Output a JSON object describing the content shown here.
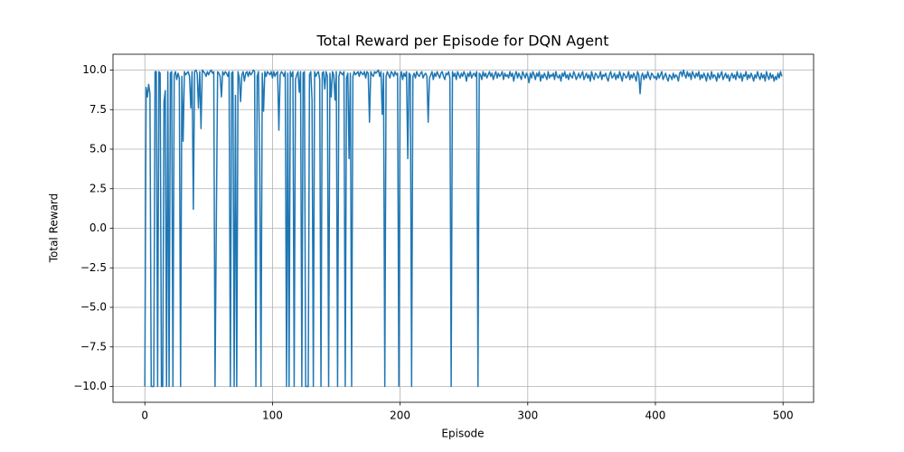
{
  "chart_data": {
    "type": "line",
    "title": "Total Reward per Episode for DQN Agent",
    "x_label": "Episode",
    "y_label": "Total Reward",
    "grid": true,
    "xlim": [
      -24.95,
      523.95
    ],
    "ylim": [
      -11,
      11
    ],
    "xticks": [
      0,
      100,
      200,
      300,
      400,
      500
    ],
    "yticks": [
      {
        "value": -10,
        "label": "−10.0"
      },
      {
        "value": -7.5,
        "label": "−7.5"
      },
      {
        "value": -5,
        "label": "−5.0"
      },
      {
        "value": -2.5,
        "label": "−2.5"
      },
      {
        "value": 0,
        "label": "0.0"
      },
      {
        "value": 2.5,
        "label": "2.5"
      },
      {
        "value": 5,
        "label": "5.0"
      },
      {
        "value": 7.5,
        "label": "7.5"
      },
      {
        "value": 10,
        "label": "10.0"
      }
    ],
    "x": [
      0,
      1,
      2,
      3,
      4,
      5,
      6,
      7,
      8,
      9,
      10,
      11,
      12,
      13,
      14,
      15,
      16,
      17,
      18,
      19,
      20,
      21,
      22,
      23,
      24,
      25,
      26,
      27,
      28,
      29,
      30,
      31,
      32,
      33,
      34,
      35,
      36,
      37,
      38,
      39,
      40,
      41,
      42,
      43,
      44,
      45,
      46,
      47,
      48,
      49,
      50,
      51,
      52,
      53,
      54,
      55,
      56,
      57,
      58,
      59,
      60,
      61,
      62,
      63,
      64,
      65,
      66,
      67,
      68,
      69,
      70,
      71,
      72,
      73,
      74,
      75,
      76,
      77,
      78,
      79,
      80,
      81,
      82,
      83,
      84,
      85,
      86,
      87,
      88,
      89,
      90,
      91,
      92,
      93,
      94,
      95,
      96,
      97,
      98,
      99,
      100,
      101,
      102,
      103,
      104,
      105,
      106,
      107,
      108,
      109,
      110,
      111,
      112,
      113,
      114,
      115,
      116,
      117,
      118,
      119,
      120,
      121,
      122,
      123,
      124,
      125,
      126,
      127,
      128,
      129,
      130,
      131,
      132,
      133,
      134,
      135,
      136,
      137,
      138,
      139,
      140,
      141,
      142,
      143,
      144,
      145,
      146,
      147,
      148,
      149,
      150,
      151,
      152,
      153,
      154,
      155,
      156,
      157,
      158,
      159,
      160,
      161,
      162,
      163,
      164,
      165,
      166,
      167,
      168,
      169,
      170,
      171,
      172,
      173,
      174,
      175,
      176,
      177,
      178,
      179,
      180,
      181,
      182,
      183,
      184,
      185,
      186,
      187,
      188,
      189,
      190,
      191,
      192,
      193,
      194,
      195,
      196,
      197,
      198,
      199,
      200,
      201,
      202,
      203,
      204,
      205,
      206,
      207,
      208,
      209,
      210,
      211,
      212,
      213,
      214,
      215,
      216,
      217,
      218,
      219,
      220,
      221,
      222,
      223,
      224,
      225,
      226,
      227,
      228,
      229,
      230,
      231,
      232,
      233,
      234,
      235,
      236,
      237,
      238,
      239,
      240,
      241,
      242,
      243,
      244,
      245,
      246,
      247,
      248,
      249,
      250,
      251,
      252,
      253,
      254,
      255,
      256,
      257,
      258,
      259,
      260,
      261,
      262,
      263,
      264,
      265,
      266,
      267,
      268,
      269,
      270,
      271,
      272,
      273,
      274,
      275,
      276,
      277,
      278,
      279,
      280,
      281,
      282,
      283,
      284,
      285,
      286,
      287,
      288,
      289,
      290,
      291,
      292,
      293,
      294,
      295,
      296,
      297,
      298,
      299,
      300,
      301,
      302,
      303,
      304,
      305,
      306,
      307,
      308,
      309,
      310,
      311,
      312,
      313,
      314,
      315,
      316,
      317,
      318,
      319,
      320,
      321,
      322,
      323,
      324,
      325,
      326,
      327,
      328,
      329,
      330,
      331,
      332,
      333,
      334,
      335,
      336,
      337,
      338,
      339,
      340,
      341,
      342,
      343,
      344,
      345,
      346,
      347,
      348,
      349,
      350,
      351,
      352,
      353,
      354,
      355,
      356,
      357,
      358,
      359,
      360,
      361,
      362,
      363,
      364,
      365,
      366,
      367,
      368,
      369,
      370,
      371,
      372,
      373,
      374,
      375,
      376,
      377,
      378,
      379,
      380,
      381,
      382,
      383,
      384,
      385,
      386,
      387,
      388,
      389,
      390,
      391,
      392,
      393,
      394,
      395,
      396,
      397,
      398,
      399,
      400,
      401,
      402,
      403,
      404,
      405,
      406,
      407,
      408,
      409,
      410,
      411,
      412,
      413,
      414,
      415,
      416,
      417,
      418,
      419,
      420,
      421,
      422,
      423,
      424,
      425,
      426,
      427,
      428,
      429,
      430,
      431,
      432,
      433,
      434,
      435,
      436,
      437,
      438,
      439,
      440,
      441,
      442,
      443,
      444,
      445,
      446,
      447,
      448,
      449,
      450,
      451,
      452,
      453,
      454,
      455,
      456,
      457,
      458,
      459,
      460,
      461,
      462,
      463,
      464,
      465,
      466,
      467,
      468,
      469,
      470,
      471,
      472,
      473,
      474,
      475,
      476,
      477,
      478,
      479,
      480,
      481,
      482,
      483,
      484,
      485,
      486,
      487,
      488,
      489,
      490,
      491,
      492,
      493,
      494,
      495,
      496,
      497,
      498,
      499
    ],
    "series": [
      {
        "color": "#1f77b4",
        "values": [
          -10,
          8.9,
          8.3,
          9.1,
          8.5,
          -10,
          -10,
          -10,
          9.9,
          9.9,
          -10,
          9.9,
          9.8,
          -10,
          -10,
          8.0,
          8.7,
          -10,
          9.9,
          -10,
          9.8,
          9.9,
          -10,
          9.7,
          9.9,
          9.4,
          9.8,
          9.5,
          -10,
          9.6,
          5.5,
          9.9,
          9.7,
          9.8,
          9.9,
          9.6,
          7.6,
          9.9,
          1.2,
          9.9,
          10.0,
          9.8,
          7.6,
          9.9,
          6.3,
          10.0,
          9.9,
          9.8,
          9.6,
          9.9,
          9.7,
          9.9,
          10.0,
          9.8,
          9.9,
          -10,
          0.3,
          9.9,
          9.8,
          9.6,
          8.3,
          9.9,
          9.7,
          9.9,
          9.8,
          9.6,
          9.9,
          -10,
          9.8,
          9.9,
          -10,
          8.4,
          -10,
          9.9,
          9.5,
          8.0,
          9.7,
          9.9,
          9.3,
          9.8,
          9.9,
          9.6,
          9.9,
          9.7,
          9.8,
          10.0,
          9.9,
          -10,
          9.6,
          9.9,
          4.2,
          -10,
          9.8,
          7.4,
          9.9,
          9.6,
          9.9,
          9.8,
          9.7,
          9.9,
          9.5,
          9.9,
          9.6,
          9.8,
          9.9,
          6.2,
          9.7,
          9.9,
          9.8,
          9.6,
          9.9,
          -10,
          9.8,
          -10,
          9.9,
          9.6,
          9.9,
          -10,
          9.4,
          9.7,
          9.9,
          8.6,
          9.9,
          -10,
          9.8,
          9.9,
          -10,
          -10,
          -10,
          9.7,
          9.9,
          8.1,
          -10,
          9.9,
          9.6,
          9.8,
          9.9,
          9.4,
          -10,
          9.8,
          9.9,
          8.8,
          9.9,
          9.6,
          -10,
          9.8,
          8.3,
          9.9,
          9.7,
          8.1,
          9.9,
          -10,
          9.6,
          9.9,
          9.8,
          9.7,
          9.9,
          -10,
          9.5,
          9.8,
          4.4,
          9.8,
          -10,
          9.6,
          9.9,
          9.7,
          9.8,
          9.9,
          9.6,
          9.9,
          9.8,
          9.7,
          9.9,
          9.5,
          9.9,
          9.8,
          6.7,
          9.9,
          9.7,
          9.6,
          9.9,
          9.8,
          9.9,
          10.0,
          9.6,
          9.9,
          7.2,
          9.8,
          -10,
          9.6,
          9.9,
          9.7,
          9.5,
          9.9,
          9.8,
          9.6,
          9.9,
          9.7,
          9.8,
          -10,
          9.5,
          9.9,
          9.4,
          9.8,
          9.6,
          9.9,
          4.4,
          9.8,
          9.7,
          -10,
          9.6,
          9.8,
          9.5,
          9.9,
          9.7,
          9.6,
          9.8,
          9.9,
          9.5,
          9.7,
          9.8,
          9.6,
          6.7,
          9.5,
          9.7,
          9.9,
          9.4,
          9.8,
          9.6,
          9.9,
          9.7,
          9.5,
          9.8,
          9.9,
          9.6,
          9.4,
          9.8,
          9.7,
          9.9,
          9.5,
          -10,
          9.9,
          9.6,
          9.8,
          9.4,
          9.9,
          9.7,
          9.5,
          9.8,
          9.6,
          9.9,
          9.7,
          9.3,
          9.8,
          9.6,
          9.9,
          9.5,
          9.7,
          9.8,
          9.6,
          9.9,
          -10,
          9.8,
          9.7,
          9.4,
          9.9,
          9.6,
          9.8,
          9.5,
          9.7,
          9.9,
          9.6,
          9.8,
          9.4,
          9.7,
          9.9,
          9.5,
          9.8,
          9.6,
          9.7,
          9.9,
          9.4,
          9.8,
          9.6,
          9.7,
          9.5,
          9.9,
          9.6,
          9.8,
          9.3,
          9.7,
          9.9,
          9.5,
          9.8,
          9.6,
          9.4,
          9.9,
          9.7,
          9.5,
          9.8,
          9.6,
          9.2,
          9.8,
          9.5,
          9.9,
          9.7,
          9.4,
          9.8,
          9.6,
          9.9,
          9.3,
          9.7,
          9.5,
          9.8,
          9.6,
          9.4,
          9.9,
          9.5,
          9.7,
          9.6,
          9.8,
          9.4,
          9.9,
          9.6,
          9.5,
          9.7,
          9.3,
          9.8,
          9.6,
          9.9,
          9.5,
          9.7,
          9.4,
          9.8,
          9.6,
          9.5,
          9.9,
          9.7,
          9.4,
          9.6,
          9.8,
          9.5,
          9.7,
          9.9,
          9.4,
          9.6,
          9.8,
          9.5,
          9.7,
          9.3,
          9.9,
          9.6,
          9.4,
          9.8,
          9.7,
          9.5,
          9.6,
          9.9,
          9.4,
          9.7,
          9.6,
          9.8,
          9.5,
          9.3,
          9.7,
          9.9,
          9.5,
          9.6,
          9.8,
          9.4,
          9.7,
          9.5,
          9.9,
          9.6,
          9.3,
          9.8,
          9.7,
          9.5,
          9.6,
          9.9,
          9.4,
          9.7,
          9.5,
          9.8,
          9.6,
          9.3,
          9.9,
          9.7,
          8.5,
          9.6,
          9.8,
          9.4,
          9.7,
          9.5,
          9.9,
          9.6,
          9.4,
          9.8,
          9.7,
          9.5,
          9.6,
          9.4,
          9.8,
          9.5,
          9.7,
          9.9,
          9.4,
          9.6,
          9.8,
          9.5,
          9.3,
          9.7,
          9.6,
          9.4,
          9.8,
          9.5,
          9.7,
          9.6,
          9.3,
          9.8,
          9.9,
          9.6,
          10.0,
          9.7,
          9.5,
          9.9,
          9.6,
          9.8,
          9.4,
          9.9,
          9.7,
          9.5,
          9.8,
          9.6,
          9.9,
          9.4,
          9.7,
          9.5,
          9.8,
          9.6,
          9.3,
          9.8,
          9.6,
          9.4,
          9.9,
          9.5,
          9.7,
          9.6,
          9.3,
          9.8,
          9.5,
          9.7,
          9.9,
          9.4,
          9.6,
          9.8,
          9.5,
          9.7,
          9.3,
          9.6,
          9.8,
          9.5,
          9.7,
          9.4,
          9.9,
          9.6,
          9.5,
          9.8,
          9.3,
          9.7,
          9.6,
          9.9,
          9.4,
          9.7,
          9.5,
          9.8,
          9.6,
          9.3,
          9.7,
          9.5,
          9.9,
          9.6,
          9.4,
          9.8,
          9.5,
          9.7,
          9.3,
          9.9,
          9.6,
          9.4,
          9.8,
          9.5,
          9.7,
          9.3,
          9.6,
          9.4,
          9.8,
          9.5,
          9.9,
          9.6
        ]
      }
    ]
  }
}
